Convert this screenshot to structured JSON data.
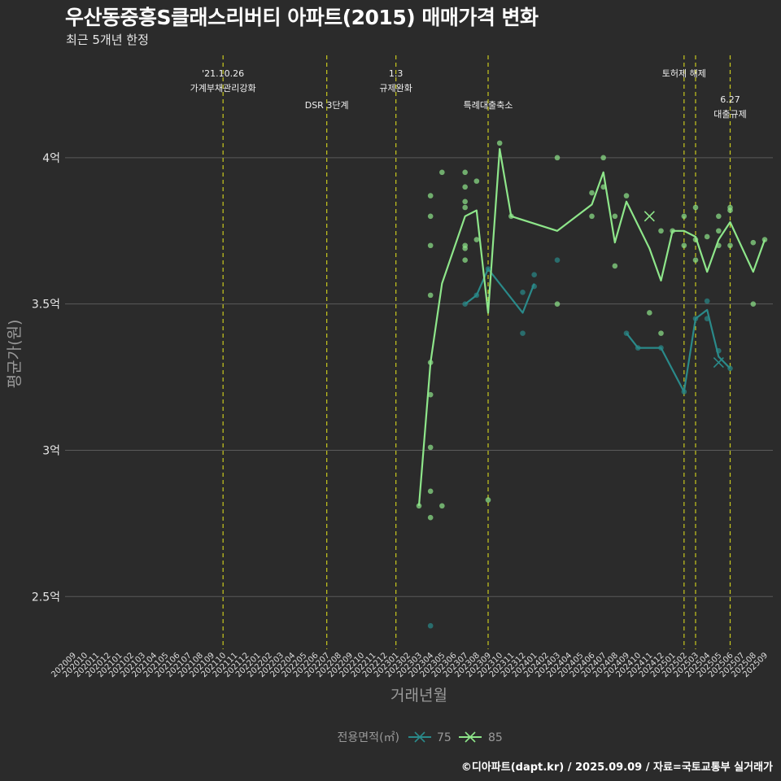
{
  "title": "우산동중흥S클래스리버티 아파트(2015) 매매가격 변화",
  "subtitle": "최근 5개년 한정",
  "caption": "©디아파트(dapt.kr) / 2025.09.09 / 자료=국토교통부 실거래가",
  "colors": {
    "background": "#2b2b2b",
    "grid": "#5a5a5a",
    "vline": "#c8c81e",
    "s75": "#2a8a8a",
    "s85": "#8ee68a"
  },
  "chart_data": {
    "type": "line",
    "title": "우산동중흥S클래스리버티 아파트(2015) 매매가격 변화",
    "subtitle": "최근 5개년 한정",
    "xlabel": "거래년월",
    "ylabel": "평균가(원)",
    "ylim": [
      2.32,
      4.35
    ],
    "y_ticks": [
      {
        "value": 2.5,
        "label": "2.5억"
      },
      {
        "value": 3.0,
        "label": "3억"
      },
      {
        "value": 3.5,
        "label": "3.5억"
      },
      {
        "value": 4.0,
        "label": "4억"
      }
    ],
    "x_start": "2020-09",
    "x_end": "2025-09",
    "legend_title": "전용면적(㎡)",
    "legend_position": "bottom",
    "grid": true,
    "annotations": [
      {
        "x": "2021-10",
        "lines": [
          "'21.10.26",
          "가계부채관리강화"
        ],
        "level": 0
      },
      {
        "x": "2022-07",
        "lines": [
          "DSR 3단계"
        ],
        "level": 1
      },
      {
        "x": "2023-01",
        "lines": [
          "1.3",
          "규제완화"
        ],
        "level": 0
      },
      {
        "x": "2023-09",
        "lines": [
          "특례대출축소"
        ],
        "level": 1
      },
      {
        "x": "2025-02",
        "lines": [
          "토허제 해제"
        ],
        "level": 0
      },
      {
        "x": "2025-03",
        "lines": [],
        "level": 0
      },
      {
        "x": "2025-06",
        "lines": [
          "6.27",
          "대출규제"
        ],
        "level": 2
      }
    ],
    "series": [
      {
        "name": "75",
        "line": [
          {
            "x": "2023-07",
            "y": 3.5
          },
          {
            "x": "2023-08",
            "y": 3.53
          },
          {
            "x": "2023-09",
            "y": 3.62
          },
          {
            "x": "2023-12",
            "y": 3.47
          },
          {
            "x": "2024-01",
            "y": 3.57
          },
          {
            "x": "2024-09",
            "y": 3.4
          },
          {
            "x": "2024-10",
            "y": 3.35
          },
          {
            "x": "2024-12",
            "y": 3.35
          },
          {
            "x": "2025-02",
            "y": 3.2
          },
          {
            "x": "2025-03",
            "y": 3.45
          },
          {
            "x": "2025-04",
            "y": 3.48
          },
          {
            "x": "2025-05",
            "y": 3.32
          },
          {
            "x": "2025-06",
            "y": 3.28
          }
        ],
        "points": [
          {
            "x": "2023-04",
            "y": 2.4
          },
          {
            "x": "2023-07",
            "y": 3.5
          },
          {
            "x": "2023-08",
            "y": 3.53
          },
          {
            "x": "2023-09",
            "y": 3.62
          },
          {
            "x": "2023-12",
            "y": 3.54
          },
          {
            "x": "2023-12",
            "y": 3.4
          },
          {
            "x": "2024-01",
            "y": 3.56
          },
          {
            "x": "2024-01",
            "y": 3.6
          },
          {
            "x": "2024-03",
            "y": 3.65
          },
          {
            "x": "2024-09",
            "y": 3.4
          },
          {
            "x": "2024-10",
            "y": 3.35
          },
          {
            "x": "2024-12",
            "y": 3.35
          },
          {
            "x": "2025-02",
            "y": 3.2
          },
          {
            "x": "2025-03",
            "y": 3.45
          },
          {
            "x": "2025-04",
            "y": 3.45
          },
          {
            "x": "2025-04",
            "y": 3.51
          },
          {
            "x": "2025-05",
            "y": 3.34
          },
          {
            "x": "2025-06",
            "y": 3.28
          }
        ],
        "crosses": [
          {
            "x": "2025-05",
            "y": 3.3
          }
        ]
      },
      {
        "name": "85",
        "line": [
          {
            "x": "2023-03",
            "y": 2.81
          },
          {
            "x": "2023-04",
            "y": 3.3
          },
          {
            "x": "2023-05",
            "y": 3.57
          },
          {
            "x": "2023-07",
            "y": 3.8
          },
          {
            "x": "2023-08",
            "y": 3.82
          },
          {
            "x": "2023-09",
            "y": 3.47
          },
          {
            "x": "2023-10",
            "y": 4.03
          },
          {
            "x": "2023-11",
            "y": 3.8
          },
          {
            "x": "2024-03",
            "y": 3.75
          },
          {
            "x": "2024-06",
            "y": 3.84
          },
          {
            "x": "2024-07",
            "y": 3.95
          },
          {
            "x": "2024-08",
            "y": 3.71
          },
          {
            "x": "2024-09",
            "y": 3.85
          },
          {
            "x": "2024-11",
            "y": 3.69
          },
          {
            "x": "2024-12",
            "y": 3.58
          },
          {
            "x": "2025-01",
            "y": 3.75
          },
          {
            "x": "2025-02",
            "y": 3.75
          },
          {
            "x": "2025-03",
            "y": 3.73
          },
          {
            "x": "2025-04",
            "y": 3.61
          },
          {
            "x": "2025-05",
            "y": 3.72
          },
          {
            "x": "2025-06",
            "y": 3.78
          },
          {
            "x": "2025-08",
            "y": 3.61
          },
          {
            "x": "2025-09",
            "y": 3.72
          }
        ],
        "points": [
          {
            "x": "2023-03",
            "y": 2.81
          },
          {
            "x": "2023-04",
            "y": 3.87
          },
          {
            "x": "2023-04",
            "y": 3.8
          },
          {
            "x": "2023-04",
            "y": 3.7
          },
          {
            "x": "2023-04",
            "y": 3.53
          },
          {
            "x": "2023-04",
            "y": 3.3
          },
          {
            "x": "2023-04",
            "y": 3.19
          },
          {
            "x": "2023-04",
            "y": 3.01
          },
          {
            "x": "2023-04",
            "y": 2.86
          },
          {
            "x": "2023-04",
            "y": 2.77
          },
          {
            "x": "2023-05",
            "y": 3.95
          },
          {
            "x": "2023-05",
            "y": 2.81
          },
          {
            "x": "2023-07",
            "y": 3.95
          },
          {
            "x": "2023-07",
            "y": 3.9
          },
          {
            "x": "2023-07",
            "y": 3.85
          },
          {
            "x": "2023-07",
            "y": 3.83
          },
          {
            "x": "2023-07",
            "y": 3.7
          },
          {
            "x": "2023-07",
            "y": 3.69
          },
          {
            "x": "2023-07",
            "y": 3.65
          },
          {
            "x": "2023-08",
            "y": 3.92
          },
          {
            "x": "2023-08",
            "y": 3.72
          },
          {
            "x": "2023-09",
            "y": 2.83
          },
          {
            "x": "2023-10",
            "y": 4.05
          },
          {
            "x": "2023-11",
            "y": 3.8
          },
          {
            "x": "2024-03",
            "y": 4.0
          },
          {
            "x": "2024-03",
            "y": 3.5
          },
          {
            "x": "2024-06",
            "y": 3.88
          },
          {
            "x": "2024-06",
            "y": 3.8
          },
          {
            "x": "2024-07",
            "y": 4.0
          },
          {
            "x": "2024-07",
            "y": 3.9
          },
          {
            "x": "2024-08",
            "y": 3.8
          },
          {
            "x": "2024-08",
            "y": 3.63
          },
          {
            "x": "2024-09",
            "y": 3.87
          },
          {
            "x": "2024-11",
            "y": 3.47
          },
          {
            "x": "2024-12",
            "y": 3.75
          },
          {
            "x": "2024-12",
            "y": 3.4
          },
          {
            "x": "2025-01",
            "y": 3.75
          },
          {
            "x": "2025-02",
            "y": 3.8
          },
          {
            "x": "2025-02",
            "y": 3.7
          },
          {
            "x": "2025-03",
            "y": 3.83
          },
          {
            "x": "2025-03",
            "y": 3.72
          },
          {
            "x": "2025-03",
            "y": 3.65
          },
          {
            "x": "2025-04",
            "y": 3.73
          },
          {
            "x": "2025-05",
            "y": 3.8
          },
          {
            "x": "2025-05",
            "y": 3.75
          },
          {
            "x": "2025-05",
            "y": 3.7
          },
          {
            "x": "2025-06",
            "y": 3.83
          },
          {
            "x": "2025-06",
            "y": 3.82
          },
          {
            "x": "2025-06",
            "y": 3.7
          },
          {
            "x": "2025-08",
            "y": 3.71
          },
          {
            "x": "2025-08",
            "y": 3.5
          },
          {
            "x": "2025-09",
            "y": 3.72
          }
        ],
        "crosses": [
          {
            "x": "2024-11",
            "y": 3.8
          }
        ]
      }
    ]
  }
}
